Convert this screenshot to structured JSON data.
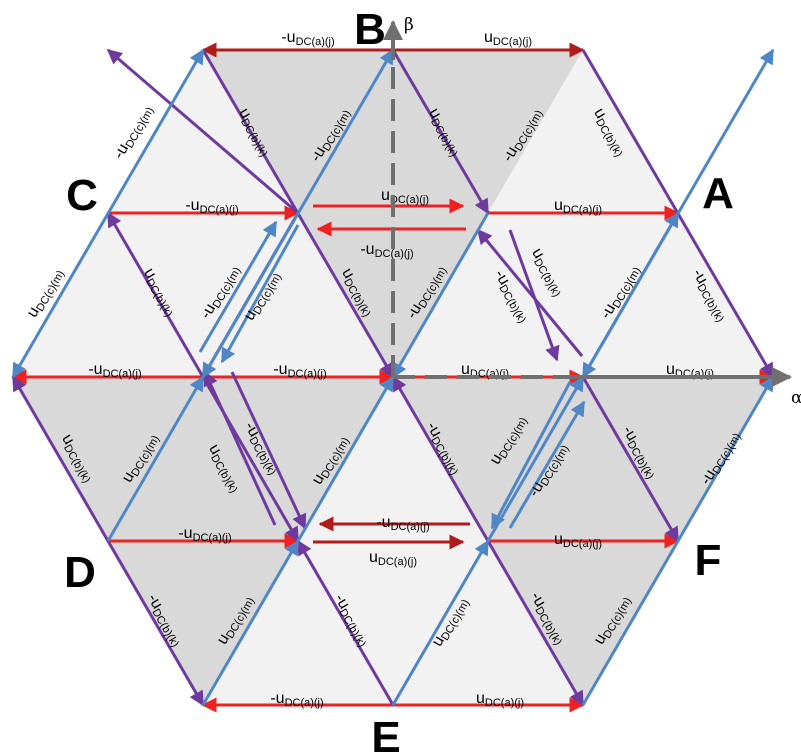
{
  "colors": {
    "a_phase": "#ee2222",
    "a_phase_dark": "#b01c1c",
    "b_phase": "#6f3a9e",
    "c_phase": "#4f86c6",
    "axis": "#707070",
    "sector_dark": "#d9d9d9",
    "sector_light": "#f2f2f2"
  },
  "vertices": {
    "A": "A",
    "B": "B",
    "C": "C",
    "D": "D",
    "E": "E",
    "F": "F"
  },
  "axes": {
    "alpha": "α",
    "beta": "β"
  },
  "vectors": {
    "a_pos": {
      "sign": "",
      "main": "u",
      "sub": "DC(a)(j)"
    },
    "a_neg": {
      "sign": "-",
      "main": "u",
      "sub": "DC(a)(j)"
    },
    "b_pos": {
      "sign": "",
      "main": "u",
      "sub": "DC(b)(k)"
    },
    "b_neg": {
      "sign": "-",
      "main": "u",
      "sub": "DC(b)(k)"
    },
    "c_pos": {
      "sign": "",
      "main": "u",
      "sub": "DC(c)(m)"
    },
    "c_neg": {
      "sign": "-",
      "main": "u",
      "sub": "DC(c)(m)"
    }
  }
}
